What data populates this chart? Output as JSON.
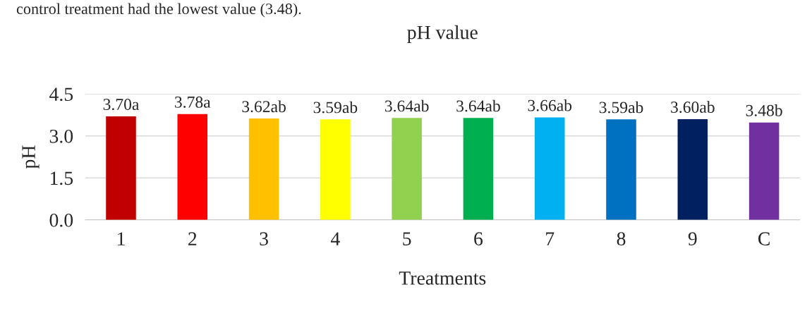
{
  "chart_data": {
    "type": "bar",
    "title": "pH value",
    "xlabel": "Treatments",
    "ylabel": "pH",
    "annotations": [
      "control treatment had the lowest value (3.48)."
    ],
    "categories": [
      "1",
      "2",
      "3",
      "4",
      "5",
      "6",
      "7",
      "8",
      "9",
      "C"
    ],
    "values": [
      3.7,
      3.78,
      3.62,
      3.59,
      3.64,
      3.64,
      3.66,
      3.59,
      3.6,
      3.48
    ],
    "colors": [
      "#c00000",
      "#ff0000",
      "#ffc000",
      "#ffff00",
      "#92d050",
      "#00b050",
      "#00b0f0",
      "#0070c0",
      "#002060",
      "#7030a0"
    ],
    "value_labels": [
      "3.70a",
      "3.78a",
      "3.62ab",
      "3.59ab",
      "3.64ab",
      "3.64ab",
      "3.66ab",
      "3.59ab",
      "3.60ab",
      "3.48b"
    ],
    "ylim": [
      0,
      4.5
    ],
    "yticks": [
      {
        "value": 0,
        "label": "0.0"
      },
      {
        "value": 1.5,
        "label": "1.5"
      },
      {
        "value": 3.0,
        "label": "3.0"
      },
      {
        "value": 4.5,
        "label": "4.5"
      }
    ],
    "grid": "y",
    "legend": false
  }
}
